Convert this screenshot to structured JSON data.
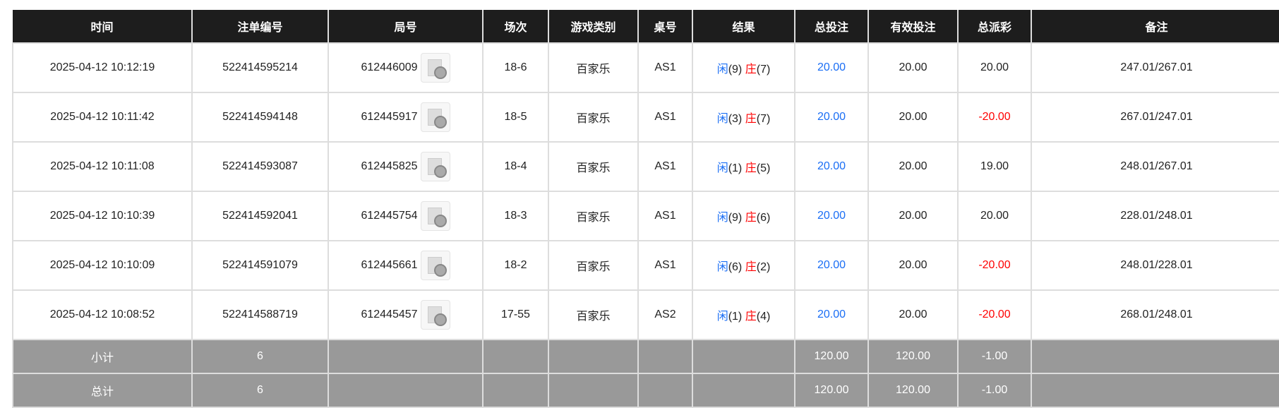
{
  "headers": [
    "时间",
    "注单编号",
    "局号",
    "场次",
    "游戏类别",
    "桌号",
    "结果",
    "总投注",
    "有效投注",
    "总派彩",
    "备注"
  ],
  "rows": [
    {
      "time": "2025-04-12 10:12:19",
      "bet_id": "522414595214",
      "round": "612446009",
      "shoe": "18-6",
      "game": "百家乐",
      "table": "AS1",
      "player": "闲",
      "player_pts": "(9)",
      "banker": "庄",
      "banker_pts": "(7)",
      "total_bet": "20.00",
      "valid_bet": "20.00",
      "payout": "20.00",
      "payout_neg": false,
      "note": "247.01/267.01"
    },
    {
      "time": "2025-04-12 10:11:42",
      "bet_id": "522414594148",
      "round": "612445917",
      "shoe": "18-5",
      "game": "百家乐",
      "table": "AS1",
      "player": "闲",
      "player_pts": "(3)",
      "banker": "庄",
      "banker_pts": "(7)",
      "total_bet": "20.00",
      "valid_bet": "20.00",
      "payout": "-20.00",
      "payout_neg": true,
      "note": "267.01/247.01"
    },
    {
      "time": "2025-04-12 10:11:08",
      "bet_id": "522414593087",
      "round": "612445825",
      "shoe": "18-4",
      "game": "百家乐",
      "table": "AS1",
      "player": "闲",
      "player_pts": "(1)",
      "banker": "庄",
      "banker_pts": "(5)",
      "total_bet": "20.00",
      "valid_bet": "20.00",
      "payout": "19.00",
      "payout_neg": false,
      "note": "248.01/267.01"
    },
    {
      "time": "2025-04-12 10:10:39",
      "bet_id": "522414592041",
      "round": "612445754",
      "shoe": "18-3",
      "game": "百家乐",
      "table": "AS1",
      "player": "闲",
      "player_pts": "(9)",
      "banker": "庄",
      "banker_pts": "(6)",
      "total_bet": "20.00",
      "valid_bet": "20.00",
      "payout": "20.00",
      "payout_neg": false,
      "note": "228.01/248.01"
    },
    {
      "time": "2025-04-12 10:10:09",
      "bet_id": "522414591079",
      "round": "612445661",
      "shoe": "18-2",
      "game": "百家乐",
      "table": "AS1",
      "player": "闲",
      "player_pts": "(6)",
      "banker": "庄",
      "banker_pts": "(2)",
      "total_bet": "20.00",
      "valid_bet": "20.00",
      "payout": "-20.00",
      "payout_neg": true,
      "note": "248.01/228.01"
    },
    {
      "time": "2025-04-12 10:08:52",
      "bet_id": "522414588719",
      "round": "612445457",
      "shoe": "17-55",
      "game": "百家乐",
      "table": "AS2",
      "player": "闲",
      "player_pts": "(1)",
      "banker": "庄",
      "banker_pts": "(4)",
      "total_bet": "20.00",
      "valid_bet": "20.00",
      "payout": "-20.00",
      "payout_neg": true,
      "note": "268.01/248.01"
    }
  ],
  "summary": [
    {
      "label": "小计",
      "count": "6",
      "total_bet": "120.00",
      "valid_bet": "120.00",
      "payout": "-1.00"
    },
    {
      "label": "总计",
      "count": "6",
      "total_bet": "120.00",
      "valid_bet": "120.00",
      "payout": "-1.00"
    }
  ],
  "colors": {
    "player": "#1a6ef5",
    "banker": "#ff0000",
    "header_bg": "#1d1d1d",
    "summary_bg": "#999999"
  }
}
